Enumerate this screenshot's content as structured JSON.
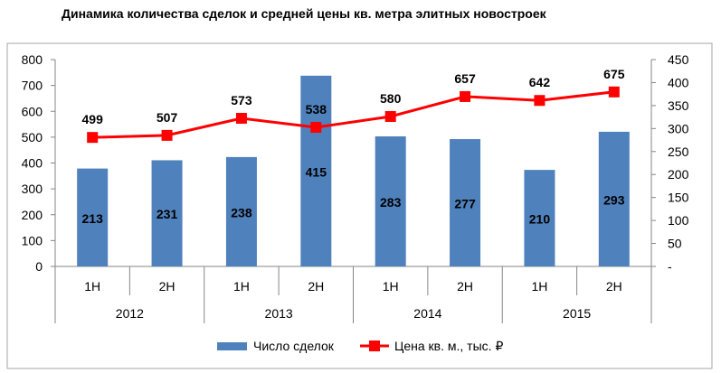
{
  "title": "Динамика количества сделок и средней цены кв. метра элитных новостроек",
  "chart_data": {
    "type": "bar",
    "title": "Динамика количества сделок и средней цены кв. метра элитных новостроек",
    "categories": [
      "1H",
      "2H",
      "1H",
      "2H",
      "1H",
      "2H",
      "1H",
      "2H"
    ],
    "groups": [
      {
        "label": "2012",
        "span": 2
      },
      {
        "label": "2013",
        "span": 2
      },
      {
        "label": "2014",
        "span": 2
      },
      {
        "label": "2015",
        "span": 2
      }
    ],
    "series": [
      {
        "name": "Число сделок",
        "type": "bar",
        "axis": "right",
        "color": "#4f81bd",
        "values": [
          213,
          231,
          238,
          415,
          283,
          277,
          210,
          293
        ]
      },
      {
        "name": "Цена кв. м., тыс. ₽",
        "type": "line",
        "axis": "left",
        "color": "#ff0000",
        "values": [
          499,
          507,
          573,
          538,
          580,
          657,
          642,
          675
        ]
      }
    ],
    "y_left": {
      "min": 0,
      "max": 800,
      "ticks": [
        "0",
        "100",
        "200",
        "300",
        "400",
        "500",
        "600",
        "700",
        "800"
      ]
    },
    "y_right": {
      "min": 0,
      "max": 450,
      "ticks": [
        "-",
        "50",
        "100",
        "150",
        "200",
        "250",
        "300",
        "350",
        "400",
        "450"
      ]
    },
    "grid": false,
    "legend_position": "bottom"
  }
}
